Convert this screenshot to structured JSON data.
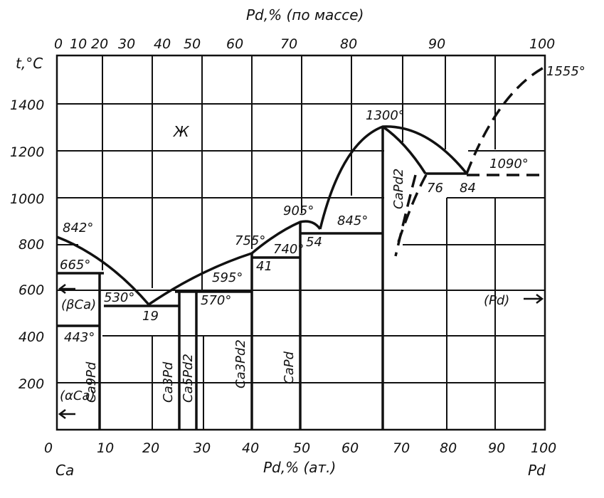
{
  "diagram": {
    "top_axis_title": "Pd,% (по массе)",
    "bottom_axis_title": "Pd,% (ат.)",
    "y_axis_title": "t,°C",
    "left_element": "Ca",
    "right_element": "Pd",
    "top_ticks": [
      "0",
      "10",
      "20",
      "30",
      "40",
      "50",
      "60",
      "70",
      "80",
      "90",
      "100"
    ],
    "bottom_ticks": [
      "0",
      "10",
      "20",
      "30",
      "40",
      "50",
      "60",
      "70",
      "80",
      "90",
      "100"
    ],
    "y_ticks": [
      "200",
      "400",
      "600",
      "800",
      "1000",
      "1200",
      "1400"
    ],
    "region_liquid": "Ж",
    "phase_labels": {
      "beta_ca": "(βCa)",
      "alpha_ca": "(αCa)",
      "pd": "(Pd)",
      "ca9pd": "Ca9Pd",
      "ca3pd": "Ca3Pd",
      "ca5pd2": "Ca5Pd2",
      "ca3pd2": "Ca3Pd2",
      "capd": "CaPd",
      "capd2": "CaPd2"
    },
    "annotations": {
      "t842": "842°",
      "t665": "665°",
      "t530": "530°",
      "t443": "443°",
      "c19": "19",
      "t570": "570°",
      "t595": "595°",
      "t755": "755°",
      "t740": "740°",
      "c41": "41",
      "t905": "905°",
      "c54": "54",
      "t845": "845°",
      "t1300": "1300°",
      "c76": "76",
      "c84": "84",
      "t1090": "1090°",
      "t1555": "1555°"
    }
  }
}
